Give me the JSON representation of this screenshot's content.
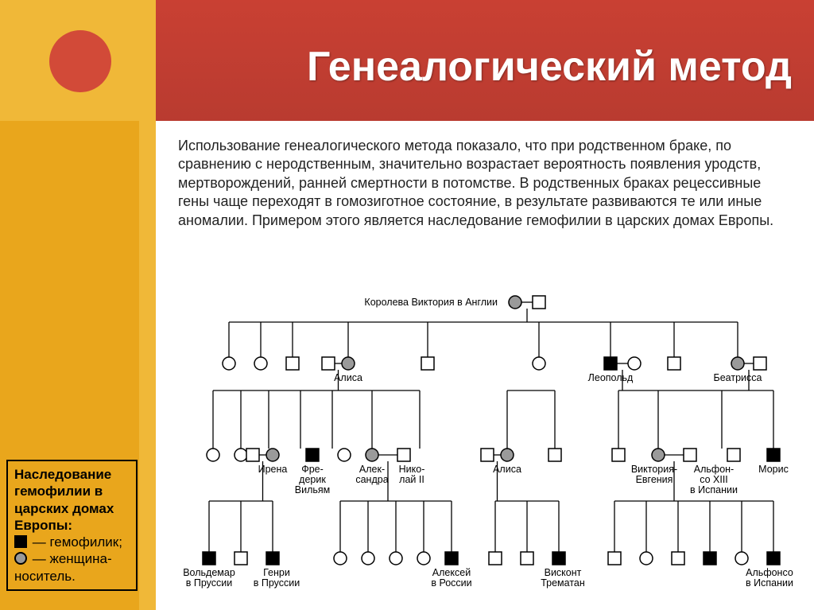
{
  "title": "Генеалогический метод",
  "paragraph": "Использование генеалогического метода показало, что при родственном браке, по сравнению с неродственным, значительно возрастает вероятность появления уродств, мертворождений, ранней смертности в потомстве. В родственных браках рецессивные гены чаще переходят в гомозиготное состояние, в результате развиваются те или иные аномалии. Примером этого является наследование гемофилии в царских домах Европы.",
  "legend": {
    "header": "Наследование гемофилии в царских домах Европы:",
    "hemophilic": "— гемофилик;",
    "carrier_female": "— женщина-носитель."
  },
  "colors": {
    "header_bg": "#c03b30",
    "stripe_outer": "#f0b838",
    "stripe_inner": "#e9a61c",
    "dot": "#d24a38",
    "carrier_fill": "#9a9a9a",
    "affected_fill": "#000000",
    "line": "#000000"
  },
  "symbol": {
    "size": 16,
    "stroke": 1.5
  },
  "pedigree": {
    "root_label": "Королева Виктория в Англии",
    "gen2_labels": {
      "alisa": "Алиса",
      "leopold": "Леопольд",
      "beatrice": "Беатрисса"
    },
    "gen3_labels": {
      "irena": "Ирена",
      "frederik": "Фре-\nдерик\nВильям",
      "aleksandra": "Алек-\nсандра",
      "nikolai": "Нико-\nлай II",
      "alisa2": "Алиса",
      "victoria_e": "Виктория-\nЕвгения",
      "alfonso13": "Альфон-\nсо XIII\nв Испании",
      "moris": "Морис"
    },
    "gen4_labels": {
      "voldemar": "Вольдемар\nв Пруссии",
      "henri": "Генри\nв Пруссии",
      "aleksei": "Алексей\nв России",
      "viscount": "Висконт\nТрематан",
      "alfonso": "Альфонсо\nв Испании"
    }
  }
}
